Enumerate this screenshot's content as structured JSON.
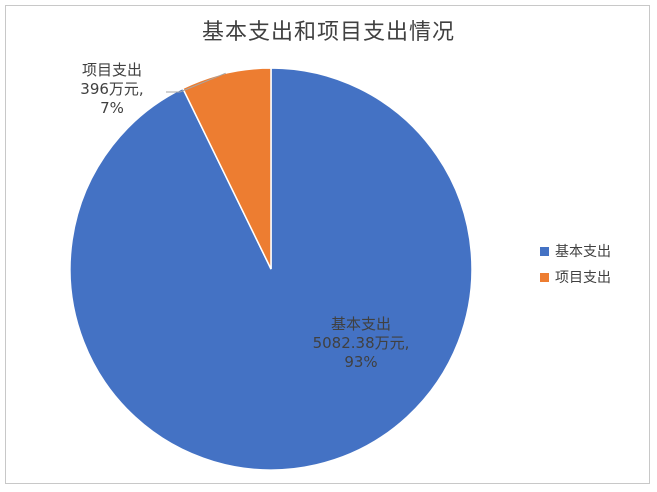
{
  "chart_data": {
    "type": "pie",
    "title": "基本支出和项目支出情况",
    "categories": [
      "基本支出",
      "项目支出"
    ],
    "values": [
      5082.38,
      396
    ],
    "percents": [
      93,
      7
    ],
    "unit": "万元",
    "colors": [
      "#4472C4",
      "#ED7D31"
    ],
    "data_labels": [
      [
        "基本支出",
        "5082.38万元,",
        "93%"
      ],
      [
        "项目支出",
        "396万元,",
        "7%"
      ]
    ],
    "legend_position": "right"
  }
}
